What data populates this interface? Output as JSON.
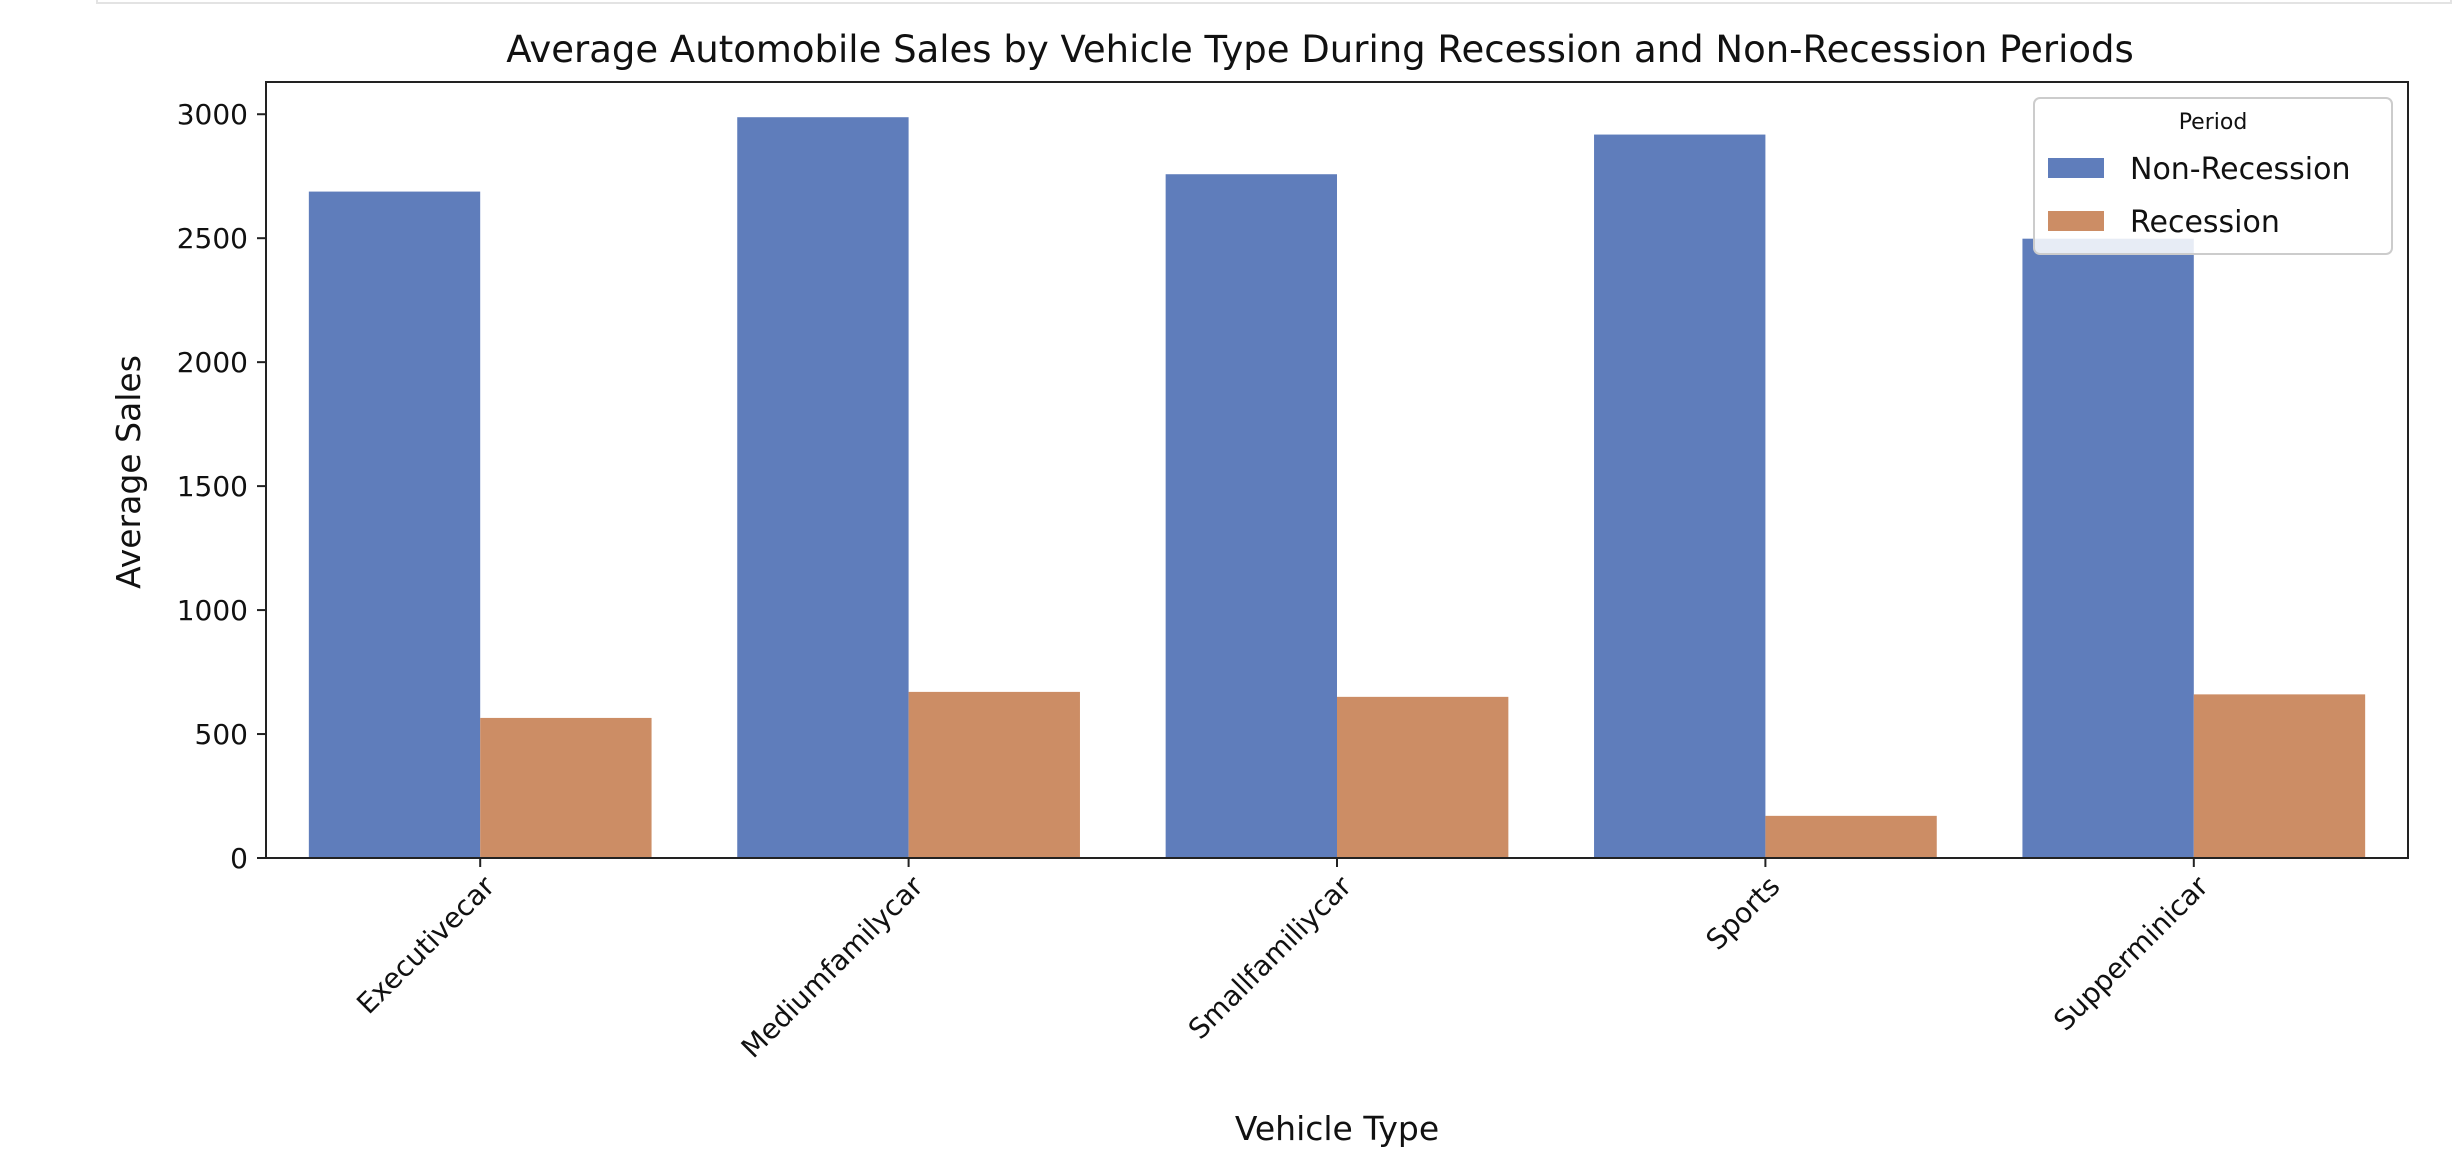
{
  "chart_data": {
    "type": "bar",
    "title": "Average Automobile Sales by Vehicle Type During Recession and Non-Recession Periods",
    "xlabel": "Vehicle Type",
    "ylabel": "Average Sales",
    "categories": [
      "Executivecar",
      "Mediumfamilycar",
      "Smallfamiliycar",
      "Sports",
      "Supperminicar"
    ],
    "series": [
      {
        "name": "Non-Recession",
        "color": "#5f7dbb",
        "values": [
          2688,
          2988,
          2758,
          2918,
          2498
        ]
      },
      {
        "name": "Recession",
        "color": "#cc8d65",
        "values": [
          565,
          670,
          650,
          170,
          660
        ]
      }
    ],
    "ylim": [
      0,
      3130
    ],
    "yticks": [
      0,
      500,
      1000,
      1500,
      2000,
      2500,
      3000
    ],
    "grid": false,
    "legend": {
      "title": "Period",
      "position": "top-right"
    }
  }
}
